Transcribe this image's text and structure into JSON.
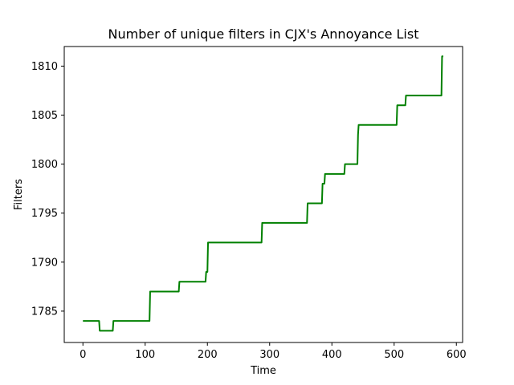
{
  "chart_data": {
    "type": "line",
    "title": "Number of unique filters in CJX's Annoyance List",
    "xlabel": "Time",
    "ylabel": "Filters",
    "xlim": [
      -30,
      610
    ],
    "ylim": [
      1781.8,
      1812.0
    ],
    "xticks": [
      0,
      100,
      200,
      300,
      400,
      500,
      600
    ],
    "yticks": [
      1785,
      1790,
      1795,
      1800,
      1805,
      1810
    ],
    "grid": false,
    "legend": "none",
    "series": [
      {
        "color": "#008000",
        "x": [
          0,
          26,
          27,
          48,
          49,
          107,
          108,
          154,
          155,
          197,
          198,
          200,
          201,
          287,
          288,
          360,
          361,
          384,
          385,
          388,
          389,
          420,
          421,
          441,
          442,
          443,
          504,
          505,
          518,
          519,
          576,
          577,
          579
        ],
        "y": [
          1784,
          1784,
          1783,
          1783,
          1784,
          1784,
          1787,
          1787,
          1788,
          1788,
          1789,
          1789,
          1792,
          1792,
          1794,
          1794,
          1796,
          1796,
          1798,
          1798,
          1799,
          1799,
          1800,
          1800,
          1803,
          1804,
          1804,
          1806,
          1806,
          1807,
          1807,
          1811,
          1811
        ]
      }
    ]
  }
}
